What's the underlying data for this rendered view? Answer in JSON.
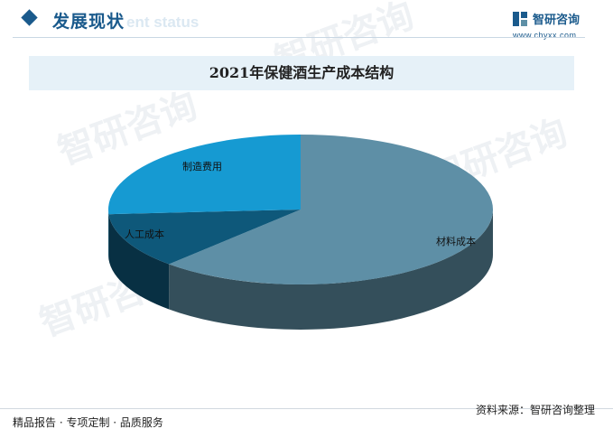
{
  "header": {
    "section_title": "发展现状",
    "section_title_ghost": "ent status",
    "brand_name": "智研咨询",
    "brand_url": "www.chyxx.com"
  },
  "watermark_text": "智研咨询",
  "colors": {
    "brand": "#1a5a8c",
    "slice_material": "#5e8fa6",
    "slice_labor": "#0e587a",
    "slice_manufacturing": "#169ad2"
  },
  "chart_data": {
    "type": "pie",
    "title": "2021年保健酒生产成本结构",
    "style": "3d",
    "slices": [
      {
        "label": "材料成本",
        "value": 62
      },
      {
        "label": "人工成本",
        "value": 12
      },
      {
        "label": "制造费用",
        "value": 26
      }
    ]
  },
  "footer": {
    "left_text": "精品报告 · 专项定制 · 品质服务",
    "source_text": "资料来源：智研咨询整理"
  }
}
